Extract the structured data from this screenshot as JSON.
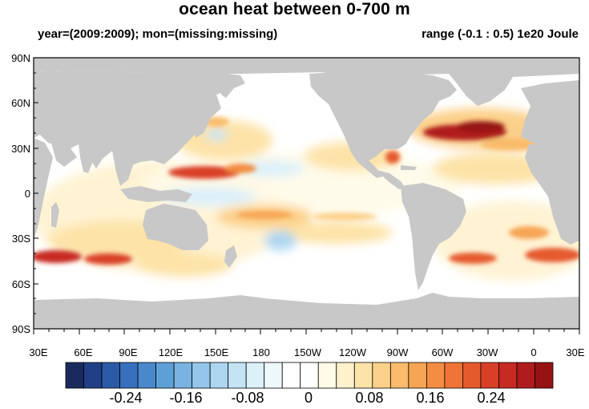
{
  "title": "ocean heat between 0-700 m",
  "subtitle_left": "year=(2009:2009); mon=(missing:missing)",
  "subtitle_right": "range (-0.1 : 0.5) 1e20 Joule",
  "colors": {
    "land": "#c8c8c8",
    "ocean_background": "#ffffff",
    "frame": "#000000"
  },
  "lat_labels": [
    "90N",
    "60N",
    "30N",
    "0",
    "30S",
    "60S",
    "90S"
  ],
  "lon_labels": [
    "30E",
    "60E",
    "90E",
    "120E",
    "150E",
    "180",
    "150W",
    "120W",
    "90W",
    "60W",
    "30W",
    "0",
    "30E"
  ],
  "colorbar": {
    "colors": [
      "#1b2a5e",
      "#213f86",
      "#2b5aa6",
      "#3770bd",
      "#4a88cc",
      "#5f9fd8",
      "#79b3e2",
      "#93c6ea",
      "#acd6f0",
      "#c4e4f5",
      "#dcf0fa",
      "#eef8fc",
      "#ffffff",
      "#ffffff",
      "#fffbe8",
      "#fff1cc",
      "#fde3a8",
      "#fcd089",
      "#f9bb6c",
      "#f6a555",
      "#f38d43",
      "#ee7437",
      "#e55a2d",
      "#d93f27",
      "#c72923",
      "#b01b1e",
      "#961313"
    ],
    "labels": [
      "-0.24",
      "-0.16",
      "-0.08",
      "0",
      "0.08",
      "0.16",
      "0.24"
    ]
  },
  "anomaly_patches": [
    {
      "region": "North Atlantic Gulf Stream",
      "color": "#a81818"
    },
    {
      "region": "North Atlantic east",
      "color": "#f6a555"
    },
    {
      "region": "Gulf of Mexico",
      "color": "#e55a2d"
    },
    {
      "region": "West Pacific 15N",
      "color": "#d93f27"
    },
    {
      "region": "Southern Indian Ocean 45S",
      "color": "#c72923"
    },
    {
      "region": "South Atlantic 45S",
      "color": "#e55a2d"
    }
  ]
}
